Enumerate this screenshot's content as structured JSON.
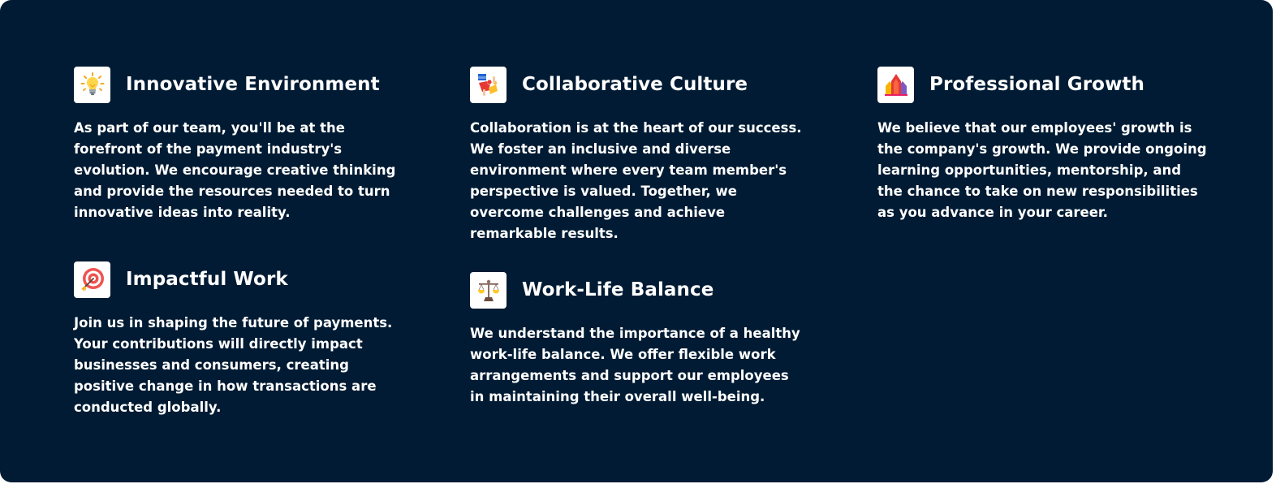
{
  "features": [
    {
      "icon": "lightbulb-icon",
      "title": "Innovative Environment",
      "text": "As part of our team, you'll be at the forefront of the payment industry's evolution. We encourage creative thinking and provide the resources needed to turn innovative ideas into reality."
    },
    {
      "icon": "puzzle-icon",
      "title": "Collaborative Culture",
      "text": "Collaboration is at the heart of our success. We foster an inclusive and diverse environment where every team member's perspective is valued. Together, we overcome challenges and achieve remarkable results."
    },
    {
      "icon": "growth-arrow-icon",
      "title": "Professional Growth",
      "text": "We believe that our employees' growth is the company's growth. We provide ongoing learning opportunities, mentorship, and the chance to take on new responsibilities as you advance in your career."
    },
    {
      "icon": "target-icon",
      "title": "Impactful Work",
      "text": "Join us in shaping the future of payments. Your contributions will directly impact businesses and consumers, creating positive change in how transactions are conducted globally."
    },
    {
      "icon": "balance-scale-icon",
      "title": "Work-Life Balance",
      "text": "We understand the importance of a healthy work-life balance. We offer flexible work arrangements and support our employees in maintaining their overall well-being."
    }
  ],
  "colors": {
    "background": "#001b33",
    "text": "#ffffff",
    "icon_tile": "#ffffff"
  }
}
